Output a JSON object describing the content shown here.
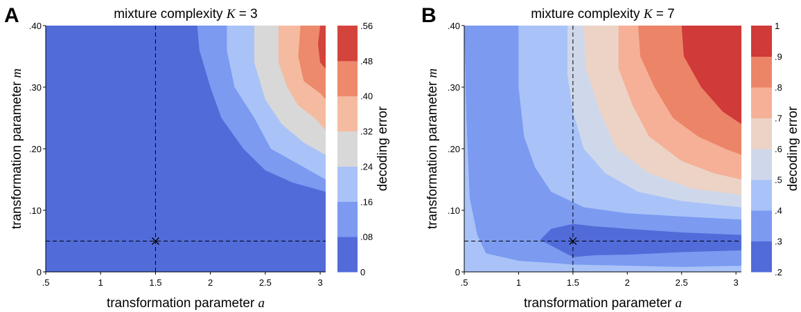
{
  "chart_data": [
    {
      "type": "heatmap",
      "panel_label": "A",
      "title_prefix": "mixture complexity ",
      "title_var": "K",
      "title_suffix": " = 3",
      "xlabel_prefix": "transformation parameter ",
      "xlabel_var": "a",
      "ylabel_prefix": "transformation parameter ",
      "ylabel_var": "m",
      "xlim": [
        0.5,
        3.05
      ],
      "ylim": [
        0,
        0.4
      ],
      "x_ticks": [
        0.5,
        1,
        1.5,
        2,
        2.5,
        3
      ],
      "x_tick_labels": [
        ".5",
        "1",
        "1.5",
        "2",
        "2.5",
        "3"
      ],
      "y_ticks": [
        0,
        0.1,
        0.2,
        0.3,
        0.4
      ],
      "y_tick_labels": [
        "0",
        ".10",
        ".20",
        ".30",
        ".40"
      ],
      "reference_point": {
        "x": 1.5,
        "y": 0.05
      },
      "colorbar": {
        "label": "decoding error",
        "levels": [
          0,
          0.08,
          0.16,
          0.24,
          0.32,
          0.4,
          0.48,
          0.56
        ],
        "level_labels": [
          "0",
          ".08",
          ".16",
          ".24",
          ".32",
          ".40",
          ".48",
          ".56"
        ],
        "colors": [
          "#516bd9",
          "#7b9af0",
          "#a9c3f8",
          "#d8d8d8",
          "#f5bba1",
          "#ec8a6b",
          "#d3443c"
        ]
      },
      "contour_boundaries": [
        {
          "level": 0.08,
          "points": [
            [
              1.88,
              0.4
            ],
            [
              1.9,
              0.36
            ],
            [
              2.0,
              0.3
            ],
            [
              2.1,
              0.25
            ],
            [
              2.3,
              0.2
            ],
            [
              2.5,
              0.165
            ],
            [
              2.75,
              0.145
            ],
            [
              3.05,
              0.13
            ]
          ]
        },
        {
          "level": 0.16,
          "points": [
            [
              2.15,
              0.4
            ],
            [
              2.15,
              0.36
            ],
            [
              2.22,
              0.3
            ],
            [
              2.4,
              0.25
            ],
            [
              2.55,
              0.2
            ],
            [
              2.75,
              0.18
            ],
            [
              3.05,
              0.15
            ]
          ]
        },
        {
          "level": 0.24,
          "points": [
            [
              2.4,
              0.4
            ],
            [
              2.4,
              0.34
            ],
            [
              2.5,
              0.28
            ],
            [
              2.65,
              0.24
            ],
            [
              2.85,
              0.21
            ],
            [
              3.05,
              0.19
            ]
          ]
        },
        {
          "level": 0.32,
          "points": [
            [
              2.62,
              0.4
            ],
            [
              2.62,
              0.34
            ],
            [
              2.7,
              0.3
            ],
            [
              2.8,
              0.27
            ],
            [
              2.95,
              0.25
            ],
            [
              3.05,
              0.23
            ]
          ]
        },
        {
          "level": 0.4,
          "points": [
            [
              2.82,
              0.4
            ],
            [
              2.8,
              0.35
            ],
            [
              2.85,
              0.31
            ],
            [
              3.0,
              0.29
            ],
            [
              3.05,
              0.28
            ]
          ]
        },
        {
          "level": 0.48,
          "points": [
            [
              3.0,
              0.4
            ],
            [
              2.98,
              0.37
            ],
            [
              3.0,
              0.34
            ],
            [
              3.05,
              0.33
            ]
          ]
        }
      ]
    },
    {
      "type": "heatmap",
      "panel_label": "B",
      "title_prefix": "mixture complexity ",
      "title_var": "K",
      "title_suffix": " = 7",
      "xlabel_prefix": "transformation parameter ",
      "xlabel_var": "a",
      "ylabel_prefix": "transformation parameter ",
      "ylabel_var": "m",
      "xlim": [
        0.5,
        3.05
      ],
      "ylim": [
        0,
        0.4
      ],
      "x_ticks": [
        0.5,
        1,
        1.5,
        2,
        2.5,
        3
      ],
      "x_tick_labels": [
        ".5",
        "1",
        "1.5",
        "2",
        "2.5",
        "3"
      ],
      "y_ticks": [
        0,
        0.1,
        0.2,
        0.3,
        0.4
      ],
      "y_tick_labels": [
        "0",
        ".10",
        ".20",
        ".30",
        ".40"
      ],
      "reference_point": {
        "x": 1.5,
        "y": 0.05
      },
      "colorbar": {
        "label": "decoding error",
        "levels": [
          0.2,
          0.3,
          0.4,
          0.5,
          0.6,
          0.7,
          0.8,
          0.9,
          1.0
        ],
        "level_labels": [
          ".2",
          ".3",
          ".4",
          ".5",
          ".6",
          ".7",
          ".8",
          ".9",
          "1"
        ],
        "colors": [
          "#516bd9",
          "#7b9af0",
          "#a9c3f8",
          "#cfd8ea",
          "#ecd3c6",
          "#f5b097",
          "#ec8467",
          "#d03a38"
        ]
      },
      "contour_boundaries": [
        {
          "level": 0.3,
          "points": [
            [
              1.2,
              0.052
            ],
            [
              1.3,
              0.07
            ],
            [
              1.5,
              0.078
            ],
            [
              1.7,
              0.074
            ],
            [
              2.0,
              0.07
            ],
            [
              2.5,
              0.064
            ],
            [
              3.05,
              0.06
            ],
            [
              3.05,
              0.035
            ],
            [
              2.5,
              0.032
            ],
            [
              2.0,
              0.028
            ],
            [
              1.7,
              0.027
            ],
            [
              1.5,
              0.024
            ],
            [
              1.2,
              0.052
            ]
          ]
        },
        {
          "level": 0.4,
          "points": [
            [
              1.0,
              0.4
            ],
            [
              1.0,
              0.3
            ],
            [
              1.05,
              0.22
            ],
            [
              1.15,
              0.17
            ],
            [
              1.3,
              0.13
            ],
            [
              1.6,
              0.105
            ],
            [
              2.0,
              0.095
            ],
            [
              2.5,
              0.09
            ],
            [
              3.05,
              0.085
            ]
          ]
        },
        {
          "level": 0.5,
          "points": [
            [
              1.45,
              0.4
            ],
            [
              1.45,
              0.32
            ],
            [
              1.5,
              0.26
            ],
            [
              1.6,
              0.2
            ],
            [
              1.8,
              0.16
            ],
            [
              2.1,
              0.13
            ],
            [
              2.5,
              0.115
            ],
            [
              3.05,
              0.105
            ]
          ]
        },
        {
          "level": 0.6,
          "points": [
            [
              1.6,
              0.4
            ],
            [
              1.62,
              0.33
            ],
            [
              1.75,
              0.26
            ],
            [
              1.9,
              0.2
            ],
            [
              2.2,
              0.16
            ],
            [
              2.6,
              0.135
            ],
            [
              3.05,
              0.125
            ]
          ]
        },
        {
          "level": 0.7,
          "points": [
            [
              1.92,
              0.4
            ],
            [
              1.92,
              0.33
            ],
            [
              2.05,
              0.27
            ],
            [
              2.2,
              0.22
            ],
            [
              2.5,
              0.18
            ],
            [
              2.8,
              0.16
            ],
            [
              3.05,
              0.15
            ]
          ]
        },
        {
          "level": 0.8,
          "points": [
            [
              2.1,
              0.4
            ],
            [
              2.12,
              0.35
            ],
            [
              2.25,
              0.3
            ],
            [
              2.42,
              0.25
            ],
            [
              2.65,
              0.22
            ],
            [
              2.9,
              0.2
            ],
            [
              3.05,
              0.19
            ]
          ]
        },
        {
          "level": 0.9,
          "points": [
            [
              2.5,
              0.4
            ],
            [
              2.52,
              0.35
            ],
            [
              2.68,
              0.3
            ],
            [
              2.88,
              0.26
            ],
            [
              3.05,
              0.24
            ]
          ]
        }
      ]
    }
  ]
}
